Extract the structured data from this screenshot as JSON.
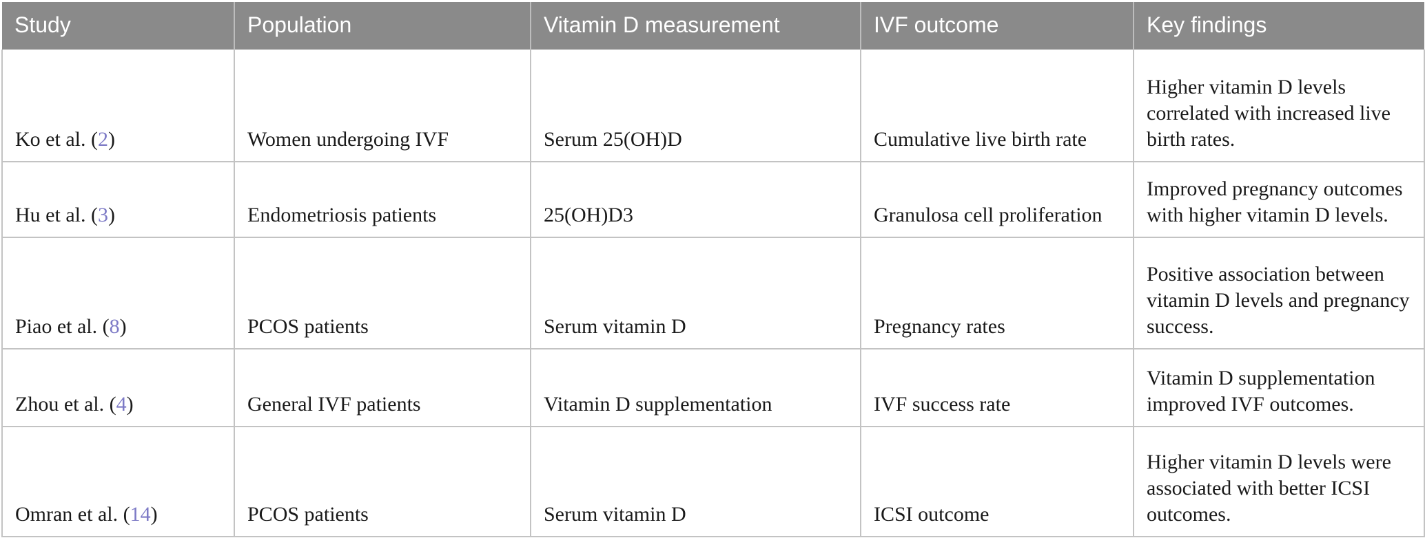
{
  "table": {
    "headers": [
      "Study",
      "Population",
      "Vitamin D measurement",
      "IVF outcome",
      "Key findings"
    ],
    "rows": [
      {
        "study_prefix": "Ko et al. (",
        "ref": "2",
        "ref_suffix": ")",
        "population": "Women undergoing IVF",
        "measurement": "Serum 25(OH)D",
        "outcome": "Cumulative live birth rate",
        "findings": "Higher vitamin D levels correlated with increased live birth rates.",
        "height_class": "h3"
      },
      {
        "study_prefix": "Hu et al. (",
        "ref": "3",
        "ref_suffix": ")",
        "population": "Endometriosis patients",
        "measurement": "25(OH)D3",
        "outcome": "Granulosa cell proliferation",
        "findings": "Improved pregnancy outcomes with higher vitamin D levels.",
        "height_class": "h2a"
      },
      {
        "study_prefix": "Piao et al. (",
        "ref": "8",
        "ref_suffix": ")",
        "population": "PCOS patients",
        "measurement": "Serum vitamin D",
        "outcome": "Pregnancy rates",
        "findings": "Positive association between vitamin D levels and pregnancy success.",
        "height_class": "h3b"
      },
      {
        "study_prefix": "Zhou et al. (",
        "ref": "4",
        "ref_suffix": ")",
        "population": "General IVF patients",
        "measurement": "Vitamin D supplementation",
        "outcome": "IVF success rate",
        "findings": "Vitamin D supplementation improved IVF outcomes.",
        "height_class": "h2b"
      },
      {
        "study_prefix": "Omran et al. (",
        "ref": "14",
        "ref_suffix": ")",
        "population": "PCOS patients",
        "measurement": "Serum vitamin D",
        "outcome": "ICSI outcome",
        "findings": "Higher vitamin D levels were associated with better ICSI outcomes.",
        "height_class": "h3c"
      }
    ],
    "colors": {
      "header_bg": "#8a8a8a",
      "header_text": "#ffffff",
      "body_text": "#1a1a1a",
      "citation_link": "#7d7ac6",
      "border": "#c3c3c3"
    }
  }
}
